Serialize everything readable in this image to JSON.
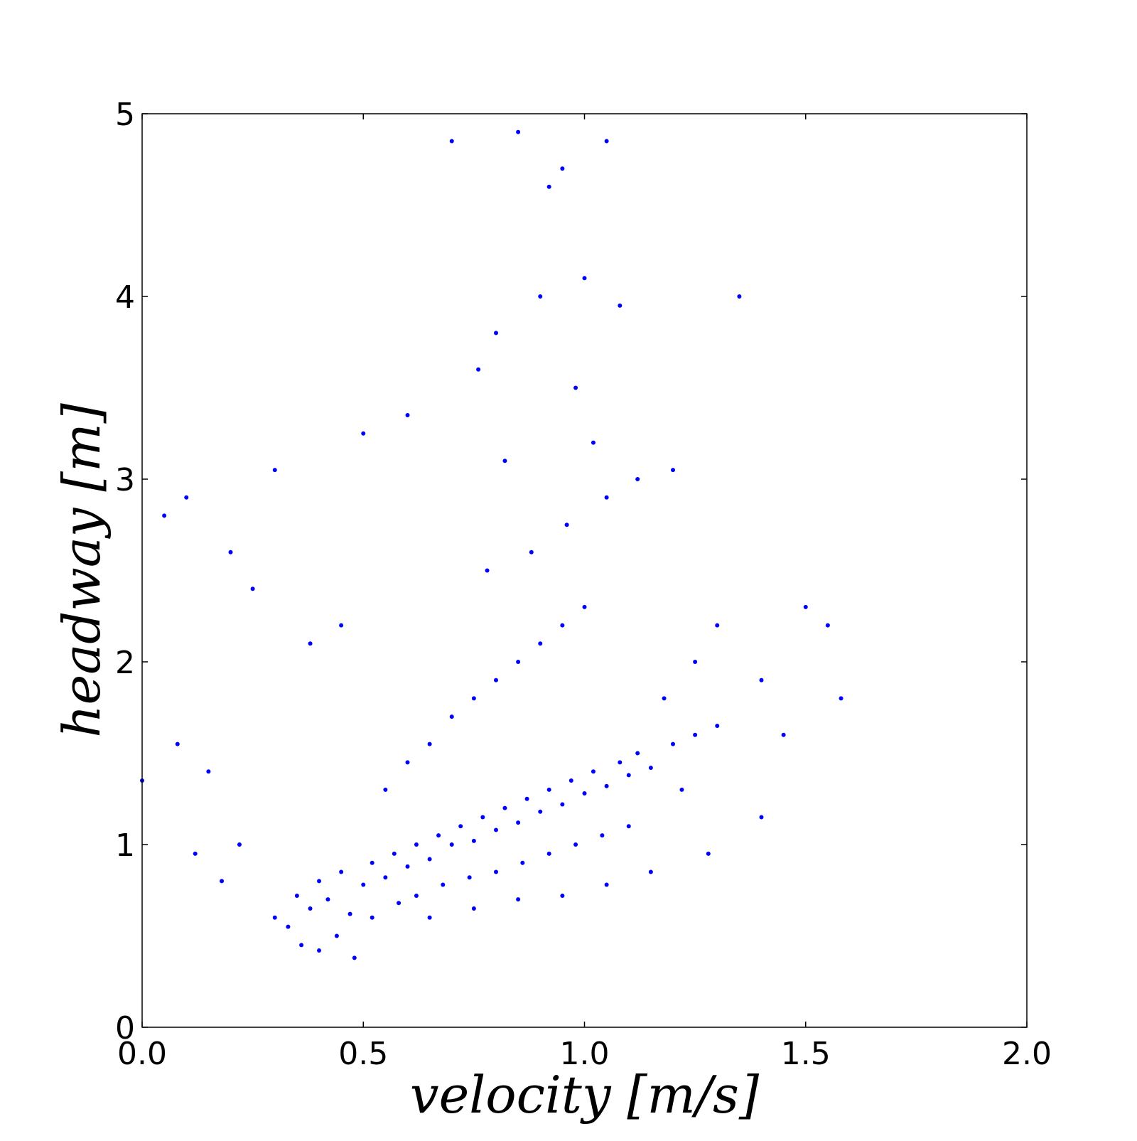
{
  "chart_data": {
    "type": "scatter",
    "xlabel": "velocity [m/s]",
    "ylabel": "headway [m]",
    "xlim": [
      0.0,
      2.0
    ],
    "ylim": [
      0,
      5
    ],
    "x_ticks": [
      "0.0",
      "0.5",
      "1.0",
      "1.5",
      "2.0"
    ],
    "y_ticks": [
      "0",
      "1",
      "2",
      "3",
      "4",
      "5"
    ],
    "grid": false,
    "marker_color": "#0000ff",
    "series": [
      {
        "points": [
          [
            0.35,
            0.72
          ],
          [
            0.38,
            0.65
          ],
          [
            0.4,
            0.8
          ],
          [
            0.42,
            0.7
          ],
          [
            0.45,
            0.85
          ],
          [
            0.47,
            0.62
          ],
          [
            0.5,
            0.78
          ],
          [
            0.52,
            0.9
          ],
          [
            0.55,
            0.82
          ],
          [
            0.57,
            0.95
          ],
          [
            0.6,
            0.88
          ],
          [
            0.62,
            1.0
          ],
          [
            0.65,
            0.92
          ],
          [
            0.67,
            1.05
          ],
          [
            0.7,
            1.0
          ],
          [
            0.72,
            1.1
          ],
          [
            0.75,
            1.02
          ],
          [
            0.77,
            1.15
          ],
          [
            0.8,
            1.08
          ],
          [
            0.82,
            1.2
          ],
          [
            0.85,
            1.12
          ],
          [
            0.87,
            1.25
          ],
          [
            0.9,
            1.18
          ],
          [
            0.92,
            1.3
          ],
          [
            0.95,
            1.22
          ],
          [
            0.97,
            1.35
          ],
          [
            1.0,
            1.28
          ],
          [
            1.02,
            1.4
          ],
          [
            1.05,
            1.32
          ],
          [
            1.08,
            1.45
          ],
          [
            1.1,
            1.38
          ],
          [
            1.12,
            1.5
          ],
          [
            1.15,
            1.42
          ],
          [
            1.2,
            1.55
          ],
          [
            1.25,
            1.6
          ],
          [
            0.3,
            0.6
          ],
          [
            0.33,
            0.55
          ],
          [
            0.36,
            0.45
          ],
          [
            0.4,
            0.42
          ],
          [
            0.44,
            0.5
          ],
          [
            0.48,
            0.38
          ],
          [
            0.52,
            0.6
          ],
          [
            0.58,
            0.68
          ],
          [
            0.62,
            0.72
          ],
          [
            0.68,
            0.78
          ],
          [
            0.74,
            0.82
          ],
          [
            0.8,
            0.85
          ],
          [
            0.86,
            0.9
          ],
          [
            0.92,
            0.95
          ],
          [
            0.98,
            1.0
          ],
          [
            1.04,
            1.05
          ],
          [
            1.1,
            1.1
          ],
          [
            0.55,
            1.3
          ],
          [
            0.6,
            1.45
          ],
          [
            0.65,
            1.55
          ],
          [
            0.7,
            1.7
          ],
          [
            0.75,
            1.8
          ],
          [
            0.8,
            1.9
          ],
          [
            0.85,
            2.0
          ],
          [
            0.9,
            2.1
          ],
          [
            0.95,
            2.2
          ],
          [
            1.0,
            2.3
          ],
          [
            0.78,
            2.5
          ],
          [
            0.88,
            2.6
          ],
          [
            0.96,
            2.75
          ],
          [
            1.05,
            2.9
          ],
          [
            1.12,
            3.0
          ],
          [
            0.82,
            3.1
          ],
          [
            1.02,
            3.2
          ],
          [
            0.76,
            3.6
          ],
          [
            0.8,
            3.8
          ],
          [
            0.9,
            4.0
          ],
          [
            1.0,
            4.1
          ],
          [
            1.08,
            3.95
          ],
          [
            0.92,
            4.6
          ],
          [
            0.95,
            4.7
          ],
          [
            0.85,
            4.9
          ],
          [
            1.05,
            4.85
          ],
          [
            0.7,
            4.85
          ],
          [
            0.98,
            3.5
          ],
          [
            1.2,
            3.05
          ],
          [
            1.35,
            4.0
          ],
          [
            1.5,
            2.3
          ],
          [
            1.55,
            2.2
          ],
          [
            1.58,
            1.8
          ],
          [
            1.45,
            1.6
          ],
          [
            1.3,
            1.65
          ],
          [
            1.4,
            1.15
          ],
          [
            0.05,
            2.8
          ],
          [
            0.1,
            2.9
          ],
          [
            0.2,
            2.6
          ],
          [
            0.25,
            2.4
          ],
          [
            0.08,
            1.55
          ],
          [
            0.15,
            1.4
          ],
          [
            0.0,
            1.35
          ],
          [
            0.3,
            3.05
          ],
          [
            0.5,
            3.25
          ],
          [
            0.6,
            3.35
          ],
          [
            0.22,
            1.0
          ],
          [
            0.18,
            0.8
          ],
          [
            0.12,
            0.95
          ],
          [
            0.45,
            2.2
          ],
          [
            0.38,
            2.1
          ],
          [
            1.25,
            2.0
          ],
          [
            1.3,
            2.2
          ],
          [
            1.4,
            1.9
          ],
          [
            1.18,
            1.8
          ],
          [
            1.22,
            1.3
          ],
          [
            1.28,
            0.95
          ],
          [
            0.65,
            0.6
          ],
          [
            0.75,
            0.65
          ],
          [
            0.85,
            0.7
          ],
          [
            0.95,
            0.72
          ],
          [
            1.05,
            0.78
          ],
          [
            1.15,
            0.85
          ]
        ]
      }
    ]
  }
}
